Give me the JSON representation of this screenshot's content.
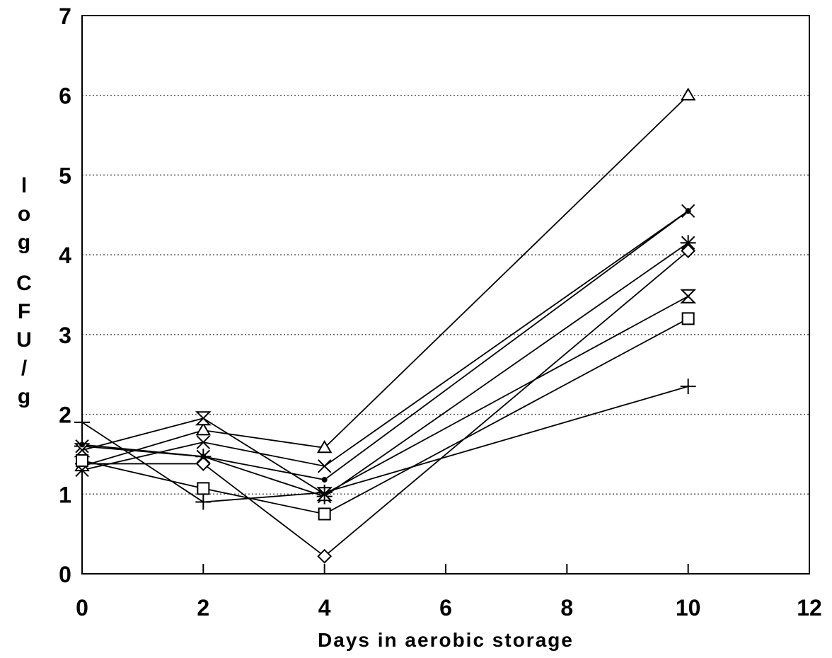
{
  "chart_data": {
    "type": "line",
    "title": "",
    "xlabel": "Days in aerobic storage",
    "ylabel": "log CFU/g",
    "xlim": [
      0,
      12
    ],
    "ylim": [
      0,
      7
    ],
    "x_ticks": [
      "0",
      "2",
      "4",
      "6",
      "8",
      "10",
      "12"
    ],
    "y_ticks": [
      "0",
      "1",
      "2",
      "3",
      "4",
      "5",
      "6",
      "7"
    ],
    "grid": "horizontal-dotted",
    "legend": "none",
    "x": [
      0,
      2,
      4,
      10
    ],
    "series": [
      {
        "marker": "triangle-up",
        "values": [
          1.35,
          1.8,
          1.58,
          6.0
        ]
      },
      {
        "marker": "x",
        "values": [
          1.3,
          1.65,
          1.35,
          4.55
        ]
      },
      {
        "marker": "asterisk",
        "values": [
          1.6,
          1.47,
          0.97,
          4.15
        ]
      },
      {
        "marker": "diamond",
        "values": [
          1.38,
          1.38,
          0.22,
          4.05
        ]
      },
      {
        "marker": "hourglass",
        "values": [
          1.55,
          1.95,
          1.0,
          3.48
        ]
      },
      {
        "marker": "square",
        "values": [
          1.42,
          1.07,
          0.75,
          3.2
        ]
      },
      {
        "marker": "plus",
        "values": [
          1.9,
          0.9,
          1.02,
          2.35
        ]
      },
      {
        "marker": "dot",
        "values": [
          1.62,
          1.47,
          1.18,
          4.55
        ]
      }
    ]
  }
}
